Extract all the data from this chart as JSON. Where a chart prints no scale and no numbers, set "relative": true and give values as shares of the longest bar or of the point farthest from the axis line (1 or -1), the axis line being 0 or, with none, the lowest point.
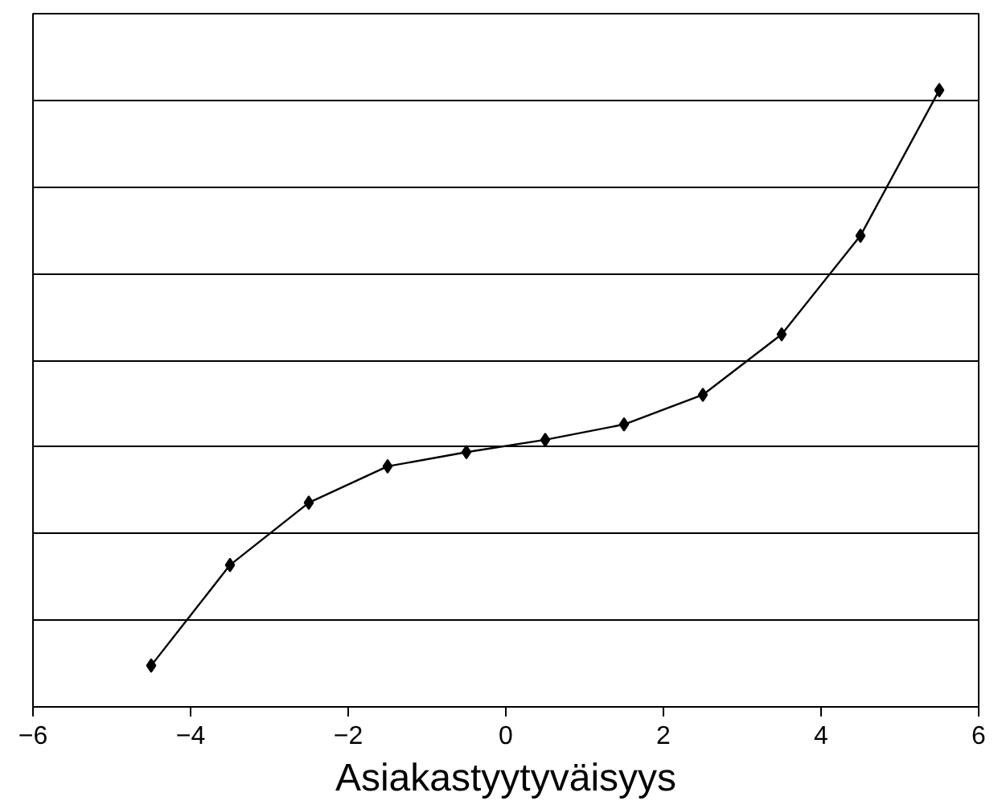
{
  "chart_data": {
    "type": "line",
    "xlabel": "Asiakastyytyväisyys",
    "relative": true,
    "x": [
      -4.5,
      -3.5,
      -2.5,
      -1.5,
      -0.5,
      0.5,
      1.5,
      2.5,
      3.5,
      4.5,
      5.5
    ],
    "series": [
      {
        "color": "#000000",
        "values": [
          0.067,
          0.23,
          0.331,
          0.39,
          0.413,
          0.433,
          0.458,
          0.506,
          0.604,
          0.764,
          1.0
        ]
      }
    ],
    "xlim": [
      -6,
      6
    ],
    "xticks": [
      {
        "value": -6,
        "label": "−6"
      },
      {
        "value": -4,
        "label": "−4"
      },
      {
        "value": -2,
        "label": "−2"
      },
      0,
      2,
      4,
      6
    ],
    "grid": "y",
    "tick_labels": "x",
    "marker": "diamond",
    "line_style": "solid"
  }
}
